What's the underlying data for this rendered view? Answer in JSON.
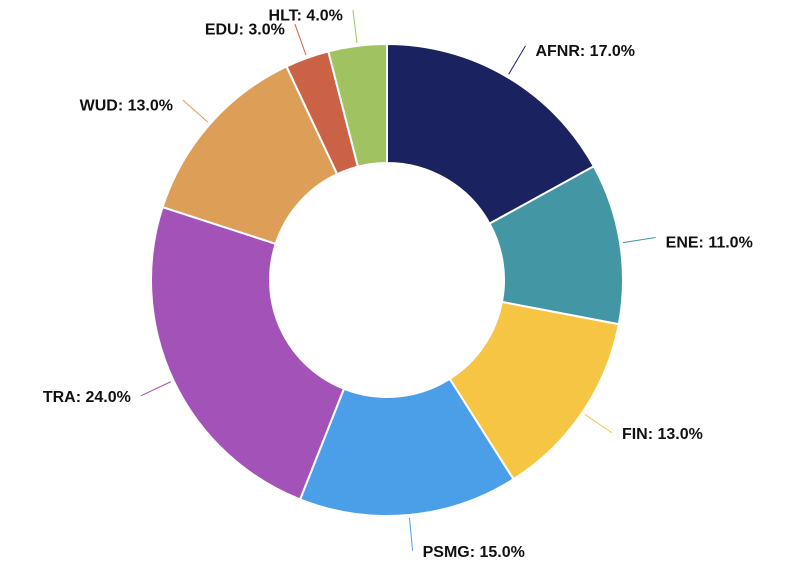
{
  "chart_data": {
    "type": "donut",
    "values": [
      17,
      11,
      13,
      15,
      24,
      13,
      3,
      4
    ],
    "value_labels": [
      "AFNR: 17.0%",
      "ENE: 11.0%",
      "FIN: 13.0%",
      "PSMG: 15.0%",
      "TRA: 24.0%",
      "WUD: 13.0%",
      "EDU: 3.0%",
      "HLT: 4.0%"
    ],
    "colors": [
      "#1a2360",
      "#4397a5",
      "#f6c544",
      "#4a9fe8",
      "#a352b8",
      "#dd9f58",
      "#cb6245",
      "#a1c260"
    ]
  }
}
